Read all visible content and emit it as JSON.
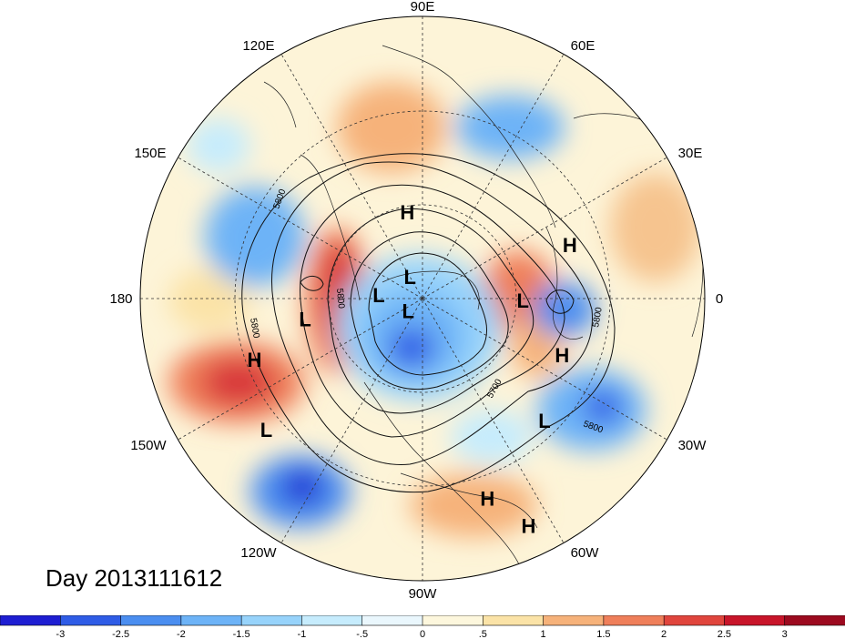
{
  "title": "Day 2013111612",
  "map": {
    "longitude_labels": [
      "90E",
      "60E",
      "30E",
      "0",
      "30W",
      "60W",
      "90W",
      "120W",
      "150W",
      "180",
      "150E",
      "120E"
    ],
    "centers": [
      {
        "type": "H",
        "lon": 100,
        "lat": 62
      },
      {
        "type": "H",
        "lon": 20,
        "lat": 40
      },
      {
        "type": "H",
        "lon": -22,
        "lat": 42
      },
      {
        "type": "H",
        "lon": -160,
        "lat": 33
      },
      {
        "type": "H",
        "lon": -72,
        "lat": 23
      },
      {
        "type": "H",
        "lon": -65,
        "lat": 10
      },
      {
        "type": "L",
        "lon": -170,
        "lat": 52
      },
      {
        "type": "L",
        "lon": -140,
        "lat": 25
      },
      {
        "type": "L",
        "lon": -45,
        "lat": 35
      },
      {
        "type": "L",
        "lon": -1,
        "lat": 58
      },
      {
        "type": "L",
        "lon": 175,
        "lat": 76
      },
      {
        "type": "L",
        "lon": 120,
        "lat": 82
      },
      {
        "type": "L",
        "lon": -140,
        "lat": 84
      }
    ],
    "contour_labels": [
      "5800",
      "5800",
      "5800",
      "5800",
      "5800",
      "5700"
    ]
  },
  "colorbar": {
    "tick_labels": [
      "-3",
      "-2.5",
      "-2",
      "-1.5",
      "-1",
      "-.5",
      "0",
      ".5",
      "1",
      "1.5",
      "2",
      "2.5",
      "3"
    ],
    "colors": [
      "#1e1ed2",
      "#2f5ce6",
      "#4b8ef0",
      "#6db3f7",
      "#97d3fb",
      "#c6ecfd",
      "#eaf7fd",
      "#fdf7dd",
      "#fbe3a7",
      "#f6b27a",
      "#ef7f5a",
      "#e0453d",
      "#c8152a",
      "#9c0a1f"
    ]
  }
}
